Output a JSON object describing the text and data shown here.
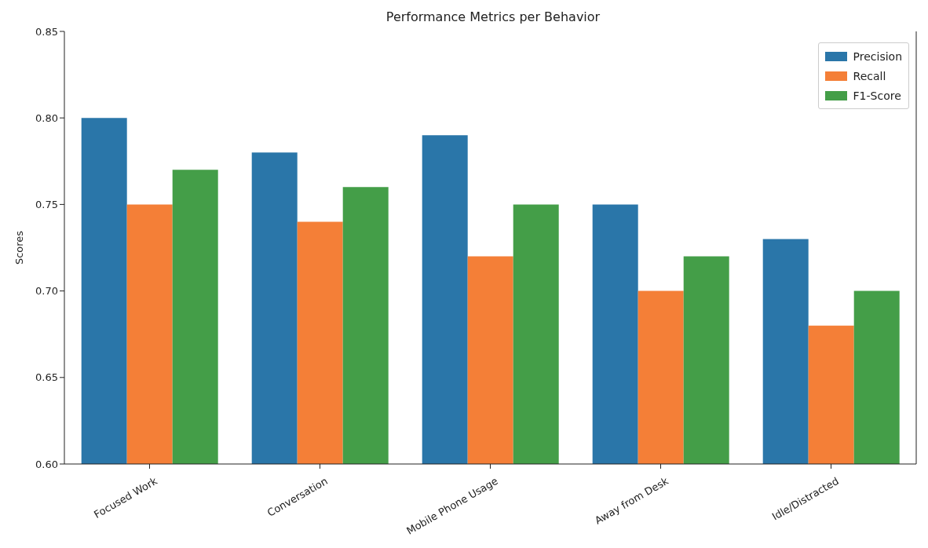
{
  "chart_data": {
    "type": "bar",
    "title": "Performance Metrics per Behavior",
    "ylabel": "Scores",
    "categories": [
      "Focused Work",
      "Conversation",
      "Mobile Phone Usage",
      "Away from Desk",
      "Idle/Distracted"
    ],
    "series": [
      {
        "name": "Precision",
        "color": "#2a76a9",
        "values": [
          0.8,
          0.78,
          0.79,
          0.75,
          0.73
        ]
      },
      {
        "name": "Recall",
        "color": "#f47f37",
        "values": [
          0.75,
          0.74,
          0.72,
          0.7,
          0.68
        ]
      },
      {
        "name": "F1-Score",
        "color": "#449e48",
        "values": [
          0.77,
          0.76,
          0.75,
          0.72,
          0.7
        ]
      }
    ],
    "ylim": [
      0.6,
      0.85
    ],
    "yticks": [
      {
        "value": 0.6,
        "label": "0.60"
      },
      {
        "value": 0.65,
        "label": "0.65"
      },
      {
        "value": 0.7,
        "label": "0.70"
      },
      {
        "value": 0.75,
        "label": "0.75"
      },
      {
        "value": 0.8,
        "label": "0.80"
      },
      {
        "value": 0.85,
        "label": "0.85"
      }
    ],
    "grid": false,
    "legend": "top right"
  }
}
